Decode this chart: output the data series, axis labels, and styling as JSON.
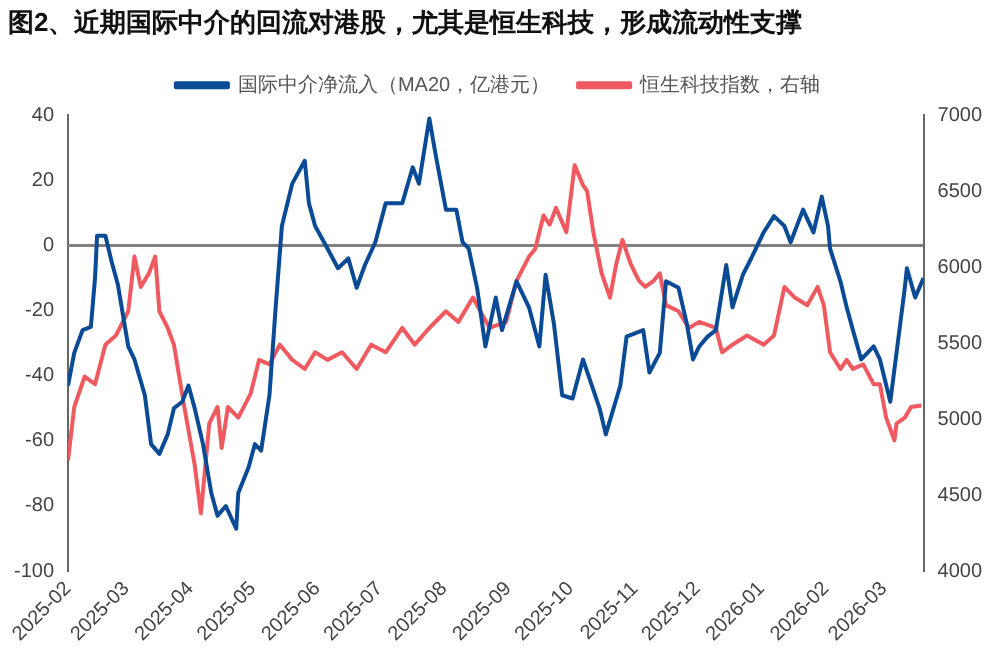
{
  "chart_data": {
    "type": "line",
    "title": "图2、近期国际中介的回流对港股，尤其是恒生科技，形成流动性支撑",
    "legend": "top",
    "xlim": [
      "2025-02-01",
      "2026-03-20"
    ],
    "xticks": [
      "2025-02",
      "2025-03",
      "2025-04",
      "2025-05",
      "2025-06",
      "2025-07",
      "2025-08",
      "2025-09",
      "2025-10",
      "2025-11",
      "2025-12",
      "2026-01",
      "2026-02",
      "2026-03"
    ],
    "ylim": [
      -100,
      40
    ],
    "yticks": [
      -100,
      -80,
      -60,
      -40,
      -20,
      0,
      20,
      40
    ],
    "y2lim": [
      4000,
      7000
    ],
    "y2ticks": [
      4000,
      4500,
      5000,
      5500,
      6000,
      6500,
      7000
    ],
    "ref_lines": [
      {
        "axis": "y",
        "value": 0,
        "color": "#808080"
      }
    ],
    "series": [
      {
        "name": "国际中介净流入（MA20，亿港元）",
        "color": "#0b4a94",
        "x": [
          "2025-02-01",
          "2025-02-04",
          "2025-02-08",
          "2025-02-12",
          "2025-02-14",
          "2025-02-15",
          "2025-02-19",
          "2025-02-22",
          "2025-02-25",
          "2025-03-02",
          "2025-03-05",
          "2025-03-10",
          "2025-03-13",
          "2025-03-17",
          "2025-03-21",
          "2025-03-24",
          "2025-03-28",
          "2025-03-31",
          "2025-04-03",
          "2025-04-07",
          "2025-04-11",
          "2025-04-14",
          "2025-04-18",
          "2025-04-23",
          "2025-04-24",
          "2025-04-29",
          "2025-05-02",
          "2025-05-05",
          "2025-05-09",
          "2025-05-12",
          "2025-05-15",
          "2025-05-20",
          "2025-05-26",
          "2025-05-28",
          "2025-05-31",
          "2025-06-06",
          "2025-06-11",
          "2025-06-16",
          "2025-06-20",
          "2025-06-24",
          "2025-06-29",
          "2025-07-04",
          "2025-07-12",
          "2025-07-17",
          "2025-07-20",
          "2025-07-25",
          "2025-07-28",
          "2025-08-02",
          "2025-08-07",
          "2025-08-10",
          "2025-08-13",
          "2025-08-17",
          "2025-08-21",
          "2025-08-26",
          "2025-08-29",
          "2025-09-05",
          "2025-09-11",
          "2025-09-16",
          "2025-09-19",
          "2025-09-23",
          "2025-09-27",
          "2025-10-02",
          "2025-10-07",
          "2025-10-15",
          "2025-10-18",
          "2025-10-25",
          "2025-10-28",
          "2025-11-05",
          "2025-11-08",
          "2025-11-13",
          "2025-11-16",
          "2025-11-22",
          "2025-11-26",
          "2025-11-29",
          "2025-12-02",
          "2025-12-06",
          "2025-12-10",
          "2025-12-15",
          "2025-12-18",
          "2025-12-23",
          "2025-12-27",
          "2026-01-02",
          "2026-01-07",
          "2026-01-12",
          "2026-01-15",
          "2026-01-21",
          "2026-01-26",
          "2026-01-30",
          "2026-02-02",
          "2026-02-03",
          "2026-02-08",
          "2026-02-11",
          "2026-02-14",
          "2026-02-18",
          "2026-02-24",
          "2026-02-27",
          "2026-03-04",
          "2026-03-07",
          "2026-03-11",
          "2026-03-12",
          "2026-03-16",
          "2026-03-20"
        ],
        "values": [
          -43,
          -33,
          -26,
          -25,
          -10,
          3,
          3,
          -5,
          -12,
          -31,
          -35,
          -46,
          -61,
          -64,
          -58,
          -50,
          -48,
          -43,
          -50,
          -61,
          -76,
          -83,
          -80,
          -87,
          -76,
          -68,
          -61,
          -63,
          -46,
          -19,
          6,
          19,
          26,
          13,
          6,
          -1,
          -7,
          -4,
          -13,
          -6,
          1,
          13,
          13,
          24,
          19,
          39,
          28,
          11,
          11,
          1,
          -1,
          -13,
          -31,
          -16,
          -26,
          -11,
          -19,
          -31,
          -9,
          -24,
          -46,
          -47,
          -35,
          -50,
          -58,
          -43,
          -28,
          -26,
          -39,
          -33,
          -11,
          -13,
          -24,
          -35,
          -31,
          -28,
          -26,
          -6,
          -19,
          -9,
          -4,
          4,
          9,
          6,
          1,
          11,
          4,
          15,
          6,
          -1,
          -11,
          -19,
          -26,
          -35,
          -31,
          -35,
          -48,
          -33,
          -13,
          -7,
          -16,
          -10
        ]
      },
      {
        "name": "恒生科技指数，右轴",
        "color": "#ee5a5f",
        "axis": "y2",
        "x": [
          "2025-02-01",
          "2025-02-04",
          "2025-02-09",
          "2025-02-14",
          "2025-02-19",
          "2025-02-24",
          "2025-03-02",
          "2025-03-05",
          "2025-03-08",
          "2025-03-12",
          "2025-03-15",
          "2025-03-17",
          "2025-03-21",
          "2025-03-24",
          "2025-03-29",
          "2025-04-03",
          "2025-04-06",
          "2025-04-10",
          "2025-04-14",
          "2025-04-16",
          "2025-04-19",
          "2025-04-24",
          "2025-04-30",
          "2025-05-04",
          "2025-05-09",
          "2025-05-14",
          "2025-05-20",
          "2025-05-26",
          "2025-05-31",
          "2025-06-06",
          "2025-06-13",
          "2025-06-20",
          "2025-06-27",
          "2025-07-04",
          "2025-07-12",
          "2025-07-18",
          "2025-07-25",
          "2025-08-02",
          "2025-08-08",
          "2025-08-15",
          "2025-08-23",
          "2025-08-31",
          "2025-09-05",
          "2025-09-11",
          "2025-09-14",
          "2025-09-18",
          "2025-09-21",
          "2025-09-24",
          "2025-09-29",
          "2025-10-03",
          "2025-10-07",
          "2025-10-09",
          "2025-10-12",
          "2025-10-16",
          "2025-10-20",
          "2025-10-23",
          "2025-10-26",
          "2025-10-30",
          "2025-11-03",
          "2025-11-06",
          "2025-11-10",
          "2025-11-13",
          "2025-11-16",
          "2025-11-22",
          "2025-11-27",
          "2025-12-02",
          "2025-12-10",
          "2025-12-13",
          "2025-12-18",
          "2025-12-25",
          "2026-01-02",
          "2026-01-07",
          "2026-01-12",
          "2026-01-17",
          "2026-01-23",
          "2026-01-28",
          "2026-01-31",
          "2026-02-03",
          "2026-02-08",
          "2026-02-11",
          "2026-02-14",
          "2026-02-19",
          "2026-02-24",
          "2026-02-27",
          "2026-03-02",
          "2026-03-06",
          "2026-03-07",
          "2026-03-11",
          "2026-03-14",
          "2026-03-19"
        ],
        "values": [
          4730,
          5080,
          5280,
          5230,
          5490,
          5550,
          5710,
          6070,
          5870,
          5960,
          6070,
          5710,
          5600,
          5490,
          5080,
          4700,
          4380,
          4970,
          5080,
          4810,
          5080,
          5010,
          5170,
          5390,
          5360,
          5490,
          5390,
          5330,
          5440,
          5390,
          5440,
          5330,
          5490,
          5440,
          5600,
          5490,
          5600,
          5710,
          5640,
          5800,
          5600,
          5640,
          5910,
          6070,
          6120,
          6340,
          6280,
          6390,
          6230,
          6670,
          6540,
          6500,
          6230,
          5960,
          5800,
          6020,
          6180,
          6020,
          5910,
          5870,
          5910,
          5960,
          5750,
          5710,
          5600,
          5640,
          5600,
          5440,
          5490,
          5550,
          5490,
          5550,
          5870,
          5800,
          5750,
          5870,
          5750,
          5440,
          5330,
          5390,
          5330,
          5360,
          5230,
          5230,
          5010,
          4860,
          4970,
          5010,
          5080,
          5090
        ]
      }
    ]
  }
}
